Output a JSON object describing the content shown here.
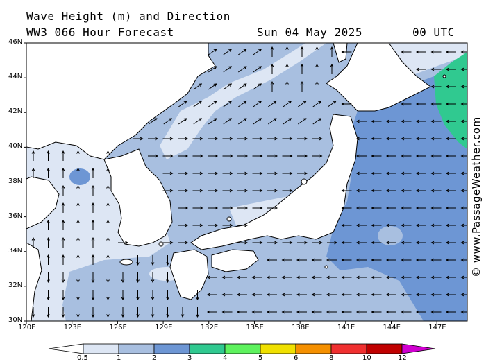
{
  "header": {
    "title": "Wave Height (m) and Direction",
    "model_line": "WW3 066 Hour Forecast",
    "date": "Sun 04 May 2025",
    "time": "00 UTC"
  },
  "watermark": "© www.PassageWeather.com",
  "map": {
    "lon_range": [
      120,
      149
    ],
    "lat_range": [
      30,
      46
    ],
    "lon_ticks": [
      "120E",
      "123E",
      "126E",
      "129E",
      "132E",
      "135E",
      "138E",
      "141E",
      "144E",
      "147E"
    ],
    "lat_ticks": [
      "30N",
      "32N",
      "34N",
      "36N",
      "38N",
      "40N",
      "42N",
      "44N",
      "46N"
    ],
    "land_color": "#ffffff",
    "coast_color": "#000000"
  },
  "colorbar": {
    "labels": [
      "0.5",
      "1",
      "2",
      "3",
      "4",
      "5",
      "6",
      "8",
      "10",
      "12"
    ],
    "colors": [
      "#dde6f4",
      "#a8bfe0",
      "#6d96d4",
      "#30c990",
      "#5ef25e",
      "#f0e000",
      "#f59000",
      "#f03030",
      "#c00000",
      "#d000d0"
    ]
  }
}
